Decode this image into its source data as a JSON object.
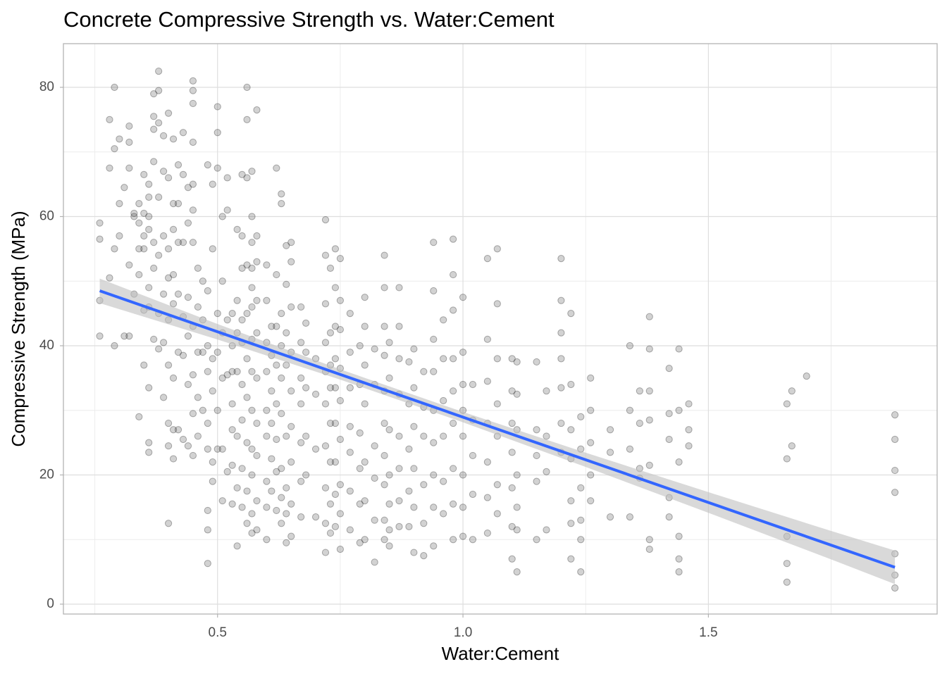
{
  "chart_data": {
    "type": "scatter",
    "title": "Concrete Compressive Strength vs. Water:Cement",
    "x_label": "Water:Cement",
    "y_label": "Compressive Strength (MPa)",
    "xlim": [
      0.186,
      1.966
    ],
    "ylim": [
      -1.53,
      86.76
    ],
    "xticks": [
      0.5,
      {
        "value": 1,
        "label": "1.0"
      },
      1.5
    ],
    "yticks": [
      0,
      20,
      40,
      60,
      80
    ],
    "x_minor_grid": [
      0.25,
      0.75,
      1.25,
      1.75
    ],
    "y_minor_grid": [
      10,
      30,
      50,
      70
    ],
    "grid": true,
    "color": "#333333",
    "fit": {
      "color": "#3366ff",
      "x": [
        0.26,
        1.88
      ],
      "y": [
        48.5,
        5.7
      ]
    },
    "band": {
      "color": "#bfbfbf",
      "x": [
        0.26,
        0.5,
        0.75,
        1.0,
        1.25,
        1.5,
        1.75,
        1.88
      ],
      "lower": [
        46.6,
        40.96,
        34.75,
        28.15,
        21.24,
        14.14,
        6.93,
        3.1
      ],
      "upper": [
        50.4,
        43.36,
        36.35,
        29.75,
        23.44,
        17.34,
        11.33,
        8.3
      ]
    },
    "x": [
      0.26,
      0.26,
      0.26,
      0.26,
      0.28,
      0.28,
      0.28,
      0.29,
      0.29,
      0.29,
      0.29,
      0.3,
      0.3,
      0.3,
      0.31,
      0.31,
      0.32,
      0.32,
      0.32,
      0.32,
      0.32,
      0.33,
      0.33,
      0.33,
      0.34,
      0.34,
      0.34,
      0.34,
      0.34,
      0.35,
      0.35,
      0.35,
      0.35,
      0.35,
      0.35,
      0.36,
      0.36,
      0.36,
      0.36,
      0.36,
      0.36,
      0.36,
      0.36,
      0.36,
      0.37,
      0.37,
      0.37,
      0.37,
      0.37,
      0.37,
      0.37,
      0.38,
      0.38,
      0.38,
      0.38,
      0.38,
      0.38,
      0.38,
      0.39,
      0.39,
      0.39,
      0.39,
      0.39,
      0.39,
      0.4,
      0.4,
      0.4,
      0.4,
      0.4,
      0.4,
      0.4,
      0.4,
      0.4,
      0.41,
      0.41,
      0.41,
      0.41,
      0.41,
      0.41,
      0.41,
      0.41,
      0.42,
      0.42,
      0.42,
      0.42,
      0.42,
      0.42,
      0.43,
      0.43,
      0.43,
      0.43,
      0.43,
      0.43,
      0.44,
      0.44,
      0.44,
      0.44,
      0.44,
      0.44,
      0.45,
      0.45,
      0.45,
      0.45,
      0.45,
      0.45,
      0.45,
      0.45,
      0.45,
      0.45,
      0.45,
      0.46,
      0.46,
      0.46,
      0.46,
      0.46,
      0.47,
      0.47,
      0.47,
      0.47,
      0.48,
      0.48,
      0.48,
      0.48,
      0.48,
      0.48,
      0.48,
      0.48,
      0.48,
      0.49,
      0.49,
      0.49,
      0.49,
      0.49,
      0.49,
      0.5,
      0.5,
      0.5,
      0.5,
      0.5,
      0.5,
      0.5,
      0.51,
      0.51,
      0.51,
      0.51,
      0.51,
      0.51,
      0.52,
      0.52,
      0.52,
      0.52,
      0.52,
      0.53,
      0.53,
      0.53,
      0.53,
      0.53,
      0.53,
      0.53,
      0.54,
      0.54,
      0.54,
      0.54,
      0.54,
      0.54,
      0.54,
      0.55,
      0.55,
      0.55,
      0.55,
      0.55,
      0.55,
      0.55,
      0.55,
      0.55,
      0.56,
      0.56,
      0.56,
      0.56,
      0.56,
      0.56,
      0.56,
      0.56,
      0.56,
      0.56,
      0.57,
      0.57,
      0.57,
      0.57,
      0.57,
      0.57,
      0.57,
      0.57,
      0.57,
      0.57,
      0.57,
      0.57,
      0.57,
      0.58,
      0.58,
      0.58,
      0.58,
      0.58,
      0.58,
      0.58,
      0.58,
      0.58,
      0.58,
      0.6,
      0.6,
      0.6,
      0.6,
      0.6,
      0.6,
      0.6,
      0.6,
      0.6,
      0.61,
      0.61,
      0.61,
      0.61,
      0.61,
      0.61,
      0.62,
      0.62,
      0.62,
      0.62,
      0.62,
      0.62,
      0.62,
      0.62,
      0.63,
      0.63,
      0.63,
      0.63,
      0.63,
      0.63,
      0.63,
      0.63,
      0.63,
      0.64,
      0.64,
      0.64,
      0.64,
      0.64,
      0.64,
      0.64,
      0.64,
      0.65,
      0.65,
      0.65,
      0.65,
      0.65,
      0.65,
      0.65,
      0.65,
      0.65,
      0.67,
      0.67,
      0.67,
      0.67,
      0.67,
      0.67,
      0.67,
      0.68,
      0.68,
      0.68,
      0.68,
      0.68,
      0.7,
      0.7,
      0.7,
      0.7,
      0.72,
      0.72,
      0.72,
      0.72,
      0.72,
      0.72,
      0.72,
      0.72,
      0.72,
      0.72,
      0.73,
      0.73,
      0.73,
      0.73,
      0.73,
      0.73,
      0.73,
      0.73,
      0.74,
      0.74,
      0.74,
      0.74,
      0.74,
      0.74,
      0.74,
      0.74,
      0.74,
      0.75,
      0.75,
      0.75,
      0.75,
      0.75,
      0.75,
      0.75,
      0.75,
      0.75,
      0.77,
      0.77,
      0.77,
      0.77,
      0.77,
      0.77,
      0.77,
      0.79,
      0.79,
      0.79,
      0.79,
      0.79,
      0.79,
      0.8,
      0.8,
      0.8,
      0.8,
      0.8,
      0.8,
      0.8,
      0.82,
      0.82,
      0.82,
      0.82,
      0.82,
      0.82,
      0.84,
      0.84,
      0.84,
      0.84,
      0.84,
      0.84,
      0.84,
      0.84,
      0.84,
      0.84,
      0.85,
      0.85,
      0.85,
      0.85,
      0.85,
      0.85,
      0.85,
      0.87,
      0.87,
      0.87,
      0.87,
      0.87,
      0.87,
      0.87,
      0.87,
      0.89,
      0.89,
      0.89,
      0.89,
      0.89,
      0.9,
      0.9,
      0.9,
      0.9,
      0.9,
      0.9,
      0.92,
      0.92,
      0.92,
      0.92,
      0.92,
      0.92,
      0.94,
      0.94,
      0.94,
      0.94,
      0.94,
      0.94,
      0.94,
      0.94,
      0.94,
      0.96,
      0.96,
      0.96,
      0.96,
      0.96,
      0.96,
      0.98,
      0.98,
      0.98,
      0.98,
      0.98,
      0.98,
      0.98,
      0.98,
      0.98,
      1.0,
      1.0,
      1.0,
      1.0,
      1.0,
      1.0,
      1.0,
      1.0,
      1.02,
      1.02,
      1.02,
      1.02,
      1.02,
      1.05,
      1.05,
      1.05,
      1.05,
      1.05,
      1.05,
      1.05,
      1.07,
      1.07,
      1.07,
      1.07,
      1.07,
      1.07,
      1.07,
      1.1,
      1.1,
      1.1,
      1.1,
      1.1,
      1.1,
      1.1,
      1.11,
      1.11,
      1.11,
      1.11,
      1.11,
      1.11,
      1.11,
      1.15,
      1.15,
      1.15,
      1.15,
      1.15,
      1.17,
      1.17,
      1.17,
      1.17,
      1.2,
      1.2,
      1.2,
      1.2,
      1.2,
      1.2,
      1.2,
      1.22,
      1.22,
      1.22,
      1.22,
      1.22,
      1.22,
      1.22,
      1.24,
      1.24,
      1.24,
      1.24,
      1.24,
      1.24,
      1.26,
      1.26,
      1.26,
      1.26,
      1.26,
      1.3,
      1.3,
      1.3,
      1.34,
      1.34,
      1.34,
      1.34,
      1.36,
      1.36,
      1.36,
      1.36,
      1.38,
      1.38,
      1.38,
      1.38,
      1.38,
      1.38,
      1.38,
      1.42,
      1.42,
      1.42,
      1.42,
      1.42,
      1.44,
      1.44,
      1.44,
      1.44,
      1.44,
      1.44,
      1.46,
      1.46,
      1.46,
      1.66,
      1.66,
      1.66,
      1.66,
      1.66,
      1.67,
      1.67,
      1.7,
      1.88,
      1.88,
      1.88,
      1.88,
      1.88,
      1.88,
      1.88
    ],
    "values": [
      59,
      56.5,
      47,
      41.5,
      75,
      67.5,
      50.5,
      80,
      70.5,
      40,
      55,
      72,
      62,
      57,
      41.5,
      64.5,
      74,
      71.5,
      67.5,
      52.5,
      41.5,
      60,
      60.5,
      48,
      62,
      59,
      55,
      51,
      29,
      66.5,
      60.5,
      57,
      55,
      45.5,
      37,
      65,
      63,
      60,
      58,
      49,
      46,
      33.5,
      25,
      23.5,
      79,
      75.5,
      73.5,
      68.5,
      56,
      52,
      41,
      82.5,
      79.5,
      74.5,
      63,
      54,
      45,
      39.5,
      72.5,
      67,
      57,
      48,
      40.5,
      32,
      76,
      66,
      55,
      50.5,
      44,
      37,
      28,
      24.5,
      12.5,
      72,
      62,
      58,
      51,
      46.5,
      35,
      27,
      22.5,
      68,
      62,
      56,
      48,
      39,
      27,
      73,
      66.5,
      56,
      44.5,
      38.5,
      25.5,
      64.5,
      59,
      47.5,
      41.5,
      34,
      24.5,
      81,
      79.5,
      77.5,
      71.5,
      65,
      61,
      56,
      43,
      35.5,
      29.5,
      23,
      52,
      46,
      39,
      32,
      26,
      50,
      44,
      39,
      30,
      68,
      48.5,
      40,
      36,
      28,
      24,
      14.5,
      11.5,
      6.3,
      65,
      55,
      38,
      33,
      22,
      19,
      77,
      73,
      67.5,
      45,
      39,
      30,
      24,
      60,
      50,
      42,
      35,
      24,
      16,
      66,
      61,
      44,
      35.5,
      20.5,
      45,
      40,
      36,
      31,
      27,
      21.5,
      15.5,
      58,
      47,
      42,
      36,
      26,
      18,
      9,
      66.5,
      57,
      52,
      44,
      40.5,
      34,
      28.5,
      21,
      15,
      80,
      75,
      66,
      52.5,
      45,
      38,
      32,
      25,
      17.5,
      12.5,
      67,
      60,
      56,
      52,
      49,
      46,
      41,
      36,
      30,
      24,
      20,
      14,
      11,
      76.5,
      57,
      53,
      47,
      42,
      35,
      28,
      23,
      16,
      11.5,
      52.5,
      47,
      40.5,
      36,
      30,
      26,
      19,
      15,
      10,
      43,
      38.5,
      33,
      28,
      22.5,
      17.5,
      67.5,
      51,
      43,
      37,
      31,
      25.5,
      20.5,
      14.5,
      63.5,
      62,
      45,
      40,
      35,
      29.5,
      21,
      16.5,
      12.5,
      55.5,
      49.5,
      42,
      37,
      26,
      18,
      14,
      9.5,
      56,
      53,
      46,
      39,
      33,
      27.5,
      22,
      15.5,
      10.5,
      46,
      40.5,
      35,
      31,
      25,
      19,
      13.5,
      43.5,
      39,
      33.5,
      26,
      20,
      38,
      32.5,
      24,
      13.5,
      59.5,
      54,
      46.5,
      40.5,
      36,
      31,
      24.5,
      18,
      12.5,
      8,
      52,
      42,
      37,
      33.5,
      28,
      22,
      15.5,
      11,
      55,
      49,
      43,
      38,
      33.5,
      28,
      22,
      17,
      12,
      53.5,
      47,
      42.5,
      36.5,
      31.5,
      25.5,
      18.5,
      14,
      8.5,
      45,
      39,
      33.5,
      27.5,
      23.5,
      17.5,
      11.5,
      40,
      34,
      26.5,
      21,
      15.5,
      9.5,
      47.5,
      43,
      37,
      31,
      22,
      16,
      10,
      39.5,
      34,
      24.5,
      19.5,
      13,
      6.5,
      54,
      49,
      43,
      38.5,
      33,
      28,
      23,
      18.5,
      13,
      10,
      40.5,
      35,
      27,
      20,
      15.5,
      11.5,
      9,
      49,
      43,
      38,
      32.5,
      26,
      21,
      16,
      12,
      37.5,
      31,
      24,
      17.5,
      12,
      39.5,
      33.5,
      27.5,
      21,
      15,
      8,
      36,
      30.5,
      26,
      18.5,
      12.5,
      7.5,
      56,
      48.5,
      41,
      36,
      30,
      25,
      20,
      15,
      9,
      44,
      38,
      31.5,
      26,
      19,
      14,
      56.5,
      51,
      45.5,
      38,
      33,
      28,
      21,
      15.5,
      10,
      47.5,
      39,
      34,
      30,
      26,
      20,
      15,
      10.5,
      34,
      28.5,
      23,
      17,
      10,
      53.5,
      41,
      34.5,
      28,
      22,
      16.5,
      11,
      55,
      46.5,
      38,
      31,
      26,
      18.5,
      14,
      38,
      33,
      28,
      23.5,
      18,
      12,
      7,
      37.5,
      32.5,
      27,
      20,
      15,
      11.5,
      5,
      37.5,
      27,
      23,
      19,
      10,
      33,
      26,
      20.5,
      11.5,
      53.5,
      47,
      42,
      38,
      33.5,
      28,
      23.5,
      45,
      34,
      27,
      22.5,
      16,
      12.5,
      7,
      29,
      24,
      18,
      13,
      10,
      5,
      35,
      30,
      25,
      20,
      16,
      27,
      23.5,
      13.5,
      40,
      30,
      24,
      13.5,
      33,
      28,
      21,
      19.5,
      44.5,
      39.5,
      33,
      28.5,
      21.5,
      10,
      8.5,
      36.5,
      29.5,
      25.5,
      16.5,
      13.5,
      39.5,
      30,
      22,
      10.5,
      7,
      5,
      31,
      27,
      24.5,
      31,
      22.5,
      10.5,
      6.3,
      3.4,
      33,
      24.5,
      35.3,
      29.3,
      25.5,
      20.7,
      17.3,
      7.8,
      4.5,
      2.5
    ]
  }
}
